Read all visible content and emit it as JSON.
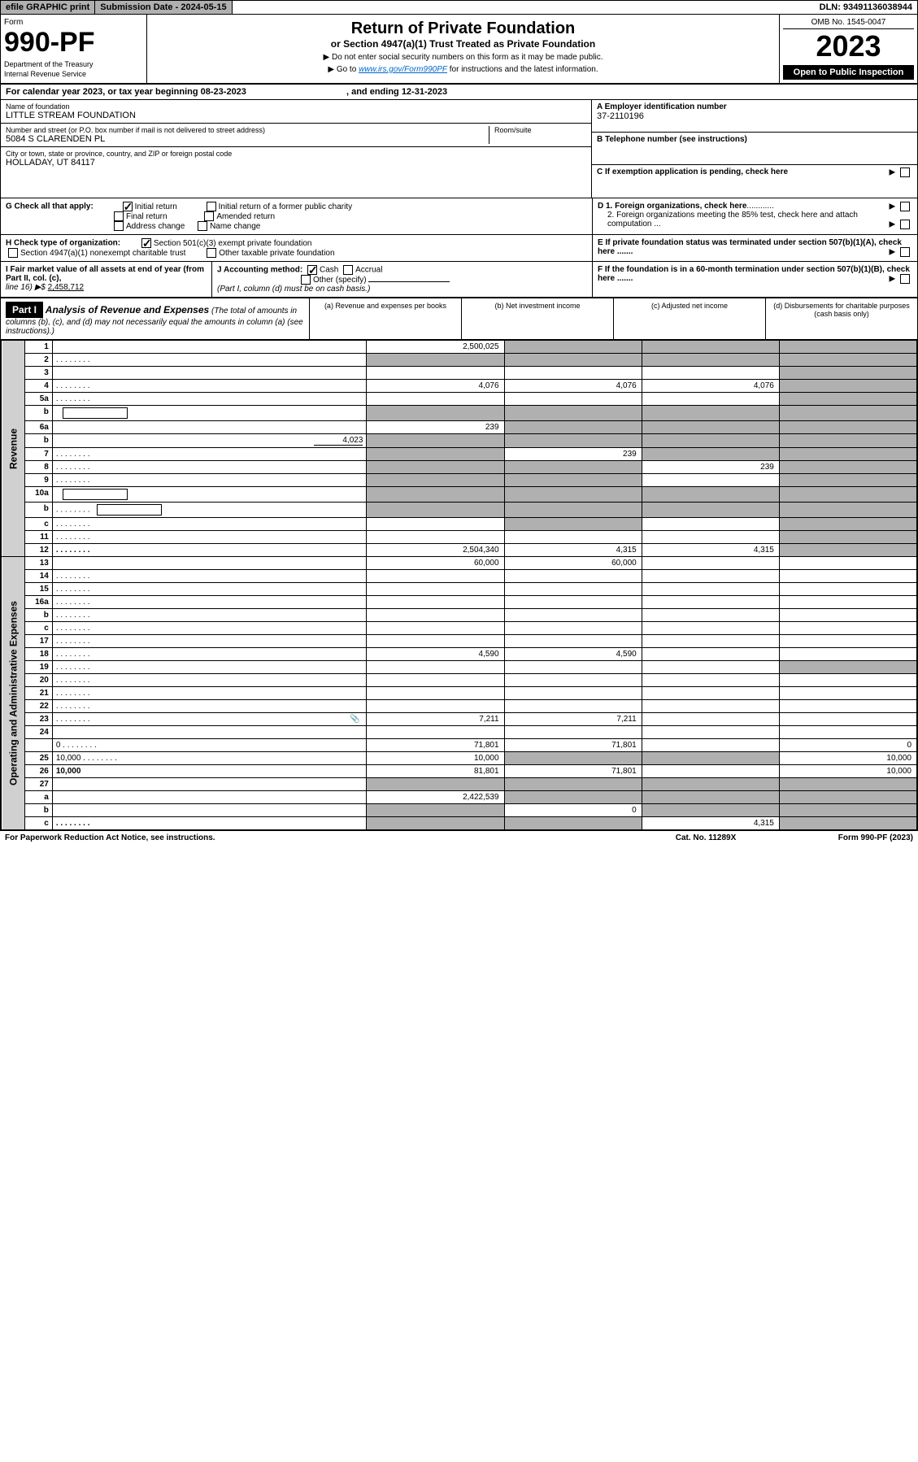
{
  "topbar": {
    "efile": "efile GRAPHIC print",
    "subdate_label": "Submission Date - ",
    "subdate": "2024-05-15",
    "dln_label": "DLN: ",
    "dln": "93491136038944"
  },
  "head": {
    "form_label": "Form",
    "form_no": "990-PF",
    "dept": "Department of the Treasury",
    "irs": "Internal Revenue Service",
    "title": "Return of Private Foundation",
    "subtitle": "or Section 4947(a)(1) Trust Treated as Private Foundation",
    "note1": "▶ Do not enter social security numbers on this form as it may be made public.",
    "note2_pre": "▶ Go to ",
    "note2_link": "www.irs.gov/Form990PF",
    "note2_post": " for instructions and the latest information.",
    "omb": "OMB No. 1545-0047",
    "year": "2023",
    "open": "Open to Public Inspection"
  },
  "calyear": {
    "text": "For calendar year 2023, or tax year beginning 08-23-2023",
    "ending": ", and ending 12-31-2023"
  },
  "entity": {
    "name_label": "Name of foundation",
    "name": "LITTLE STREAM FOUNDATION",
    "addr_label": "Number and street (or P.O. box number if mail is not delivered to street address)",
    "addr": "5084 S CLARENDEN PL",
    "room_label": "Room/suite",
    "room": "",
    "city_label": "City or town, state or province, country, and ZIP or foreign postal code",
    "city": "HOLLADAY, UT  84117",
    "ein_label": "A Employer identification number",
    "ein": "37-2110196",
    "tel_label": "B Telephone number (see instructions)",
    "tel": "",
    "pending_label": "C If exemption application is pending, check here"
  },
  "g": {
    "label": "G Check all that apply:",
    "initial": "Initial return",
    "initial_former": "Initial return of a former public charity",
    "final": "Final return",
    "amended": "Amended return",
    "addr_change": "Address change",
    "name_change": "Name change"
  },
  "h": {
    "label": "H Check type of organization:",
    "c3": "Section 501(c)(3) exempt private foundation",
    "a1": "Section 4947(a)(1) nonexempt charitable trust",
    "other_tax": "Other taxable private foundation"
  },
  "d": {
    "d1": "D 1. Foreign organizations, check here",
    "d2": "2. Foreign organizations meeting the 85% test, check here and attach computation ..."
  },
  "e": {
    "text": "E If private foundation status was terminated under section 507(b)(1)(A), check here ......."
  },
  "f": {
    "text": "F If the foundation is in a 60-month termination under section 507(b)(1)(B), check here ......."
  },
  "i": {
    "label": "I Fair market value of all assets at end of year (from Part II, col. (c),",
    "line16": "line 16) ▶$",
    "fmv": "2,458,712"
  },
  "j": {
    "label": "J Accounting method:",
    "cash": "Cash",
    "accrual": "Accrual",
    "other": "Other (specify)",
    "note": "(Part I, column (d) must be on cash basis.)"
  },
  "part1": {
    "title": "Part I",
    "heading": "Analysis of Revenue and Expenses",
    "note": "(The total of amounts in columns (b), (c), and (d) may not necessarily equal the amounts in column (a) (see instructions).)",
    "col_a": "(a) Revenue and expenses per books",
    "col_b": "(b) Net investment income",
    "col_c": "(c) Adjusted net income",
    "col_d": "(d) Disbursements for charitable purposes (cash basis only)"
  },
  "side": {
    "rev": "Revenue",
    "exp": "Operating and Administrative Expenses"
  },
  "rows": [
    {
      "n": "1",
      "d": "",
      "a": "2,500,025",
      "b": "",
      "c": "",
      "gray_b": true,
      "gray_c": true,
      "gray_d": true
    },
    {
      "n": "2",
      "d": "",
      "dots": true,
      "a": "",
      "b": "",
      "c": "",
      "gray_all": true,
      "gray_b": true,
      "gray_c": true,
      "gray_d": true
    },
    {
      "n": "3",
      "d": "",
      "a": "",
      "b": "",
      "c": "",
      "gray_d": true
    },
    {
      "n": "4",
      "d": "",
      "dots": true,
      "a": "4,076",
      "b": "4,076",
      "c": "4,076",
      "gray_d": true
    },
    {
      "n": "5a",
      "d": "",
      "dots": true,
      "a": "",
      "b": "",
      "c": "",
      "gray_d": true
    },
    {
      "n": "b",
      "d": "",
      "inline": true,
      "a": "",
      "b": "",
      "c": "",
      "gray_b": true,
      "gray_c": true,
      "gray_d": true,
      "gray_a": true
    },
    {
      "n": "6a",
      "d": "",
      "a": "239",
      "b": "",
      "c": "",
      "gray_b": true,
      "gray_c": true,
      "gray_d": true
    },
    {
      "n": "b",
      "d": "",
      "inline_val": "4,023",
      "a": "",
      "b": "",
      "c": "",
      "gray_a": true,
      "gray_b": true,
      "gray_c": true,
      "gray_d": true
    },
    {
      "n": "7",
      "d": "",
      "dots": true,
      "a": "",
      "b": "239",
      "c": "",
      "gray_a": true,
      "gray_c": true,
      "gray_d": true
    },
    {
      "n": "8",
      "d": "",
      "dots": true,
      "a": "",
      "b": "",
      "c": "239",
      "gray_a": true,
      "gray_b": true,
      "gray_d": true
    },
    {
      "n": "9",
      "d": "",
      "dots": true,
      "a": "",
      "b": "",
      "c": "",
      "gray_a": true,
      "gray_b": true,
      "gray_d": true
    },
    {
      "n": "10a",
      "d": "",
      "inline": true,
      "a": "",
      "b": "",
      "c": "",
      "gray_a": true,
      "gray_b": true,
      "gray_c": true,
      "gray_d": true
    },
    {
      "n": "b",
      "d": "",
      "dots": true,
      "inline": true,
      "a": "",
      "b": "",
      "c": "",
      "gray_a": true,
      "gray_b": true,
      "gray_c": true,
      "gray_d": true
    },
    {
      "n": "c",
      "d": "",
      "dots": true,
      "a": "",
      "b": "",
      "c": "",
      "gray_b": true,
      "gray_d": true
    },
    {
      "n": "11",
      "d": "",
      "dots": true,
      "a": "",
      "b": "",
      "c": "",
      "gray_d": true
    },
    {
      "n": "12",
      "d": "",
      "dots": true,
      "bold": true,
      "a": "2,504,340",
      "b": "4,315",
      "c": "4,315",
      "gray_d": true
    },
    {
      "n": "13",
      "d": "",
      "a": "60,000",
      "b": "60,000",
      "c": ""
    },
    {
      "n": "14",
      "d": "",
      "dots": true,
      "a": "",
      "b": "",
      "c": ""
    },
    {
      "n": "15",
      "d": "",
      "dots": true,
      "a": "",
      "b": "",
      "c": ""
    },
    {
      "n": "16a",
      "d": "",
      "dots": true,
      "a": "",
      "b": "",
      "c": ""
    },
    {
      "n": "b",
      "d": "",
      "dots": true,
      "a": "",
      "b": "",
      "c": ""
    },
    {
      "n": "c",
      "d": "",
      "dots": true,
      "a": "",
      "b": "",
      "c": ""
    },
    {
      "n": "17",
      "d": "",
      "dots": true,
      "a": "",
      "b": "",
      "c": ""
    },
    {
      "n": "18",
      "d": "",
      "dots": true,
      "a": "4,590",
      "b": "4,590",
      "c": ""
    },
    {
      "n": "19",
      "d": "",
      "dots": true,
      "a": "",
      "b": "",
      "c": "",
      "gray_d": true
    },
    {
      "n": "20",
      "d": "",
      "dots": true,
      "a": "",
      "b": "",
      "c": ""
    },
    {
      "n": "21",
      "d": "",
      "dots": true,
      "a": "",
      "b": "",
      "c": ""
    },
    {
      "n": "22",
      "d": "",
      "dots": true,
      "a": "",
      "b": "",
      "c": ""
    },
    {
      "n": "23",
      "d": "",
      "dots": true,
      "icon": true,
      "a": "7,211",
      "b": "7,211",
      "c": ""
    },
    {
      "n": "24",
      "d": "",
      "bold": true,
      "a": "",
      "b": "",
      "c": ""
    },
    {
      "n": "",
      "d": "0",
      "dots": true,
      "a": "71,801",
      "b": "71,801",
      "c": ""
    },
    {
      "n": "25",
      "d": "10,000",
      "dots": true,
      "a": "10,000",
      "b": "",
      "c": "",
      "gray_b": true,
      "gray_c": true
    },
    {
      "n": "26",
      "d": "10,000",
      "bold": true,
      "a": "81,801",
      "b": "71,801",
      "c": ""
    },
    {
      "n": "27",
      "d": "",
      "a": "",
      "b": "",
      "c": "",
      "gray_a": true,
      "gray_b": true,
      "gray_c": true,
      "gray_d": true
    },
    {
      "n": "a",
      "d": "",
      "bold": true,
      "a": "2,422,539",
      "b": "",
      "c": "",
      "gray_b": true,
      "gray_c": true,
      "gray_d": true
    },
    {
      "n": "b",
      "d": "",
      "bold": true,
      "a": "",
      "b": "0",
      "c": "",
      "gray_a": true,
      "gray_c": true,
      "gray_d": true
    },
    {
      "n": "c",
      "d": "",
      "bold": true,
      "dots": true,
      "a": "",
      "b": "",
      "c": "4,315",
      "gray_a": true,
      "gray_b": true,
      "gray_d": true
    }
  ],
  "footer": {
    "pra": "For Paperwork Reduction Act Notice, see instructions.",
    "cat": "Cat. No. 11289X",
    "form": "Form 990-PF (2023)"
  }
}
